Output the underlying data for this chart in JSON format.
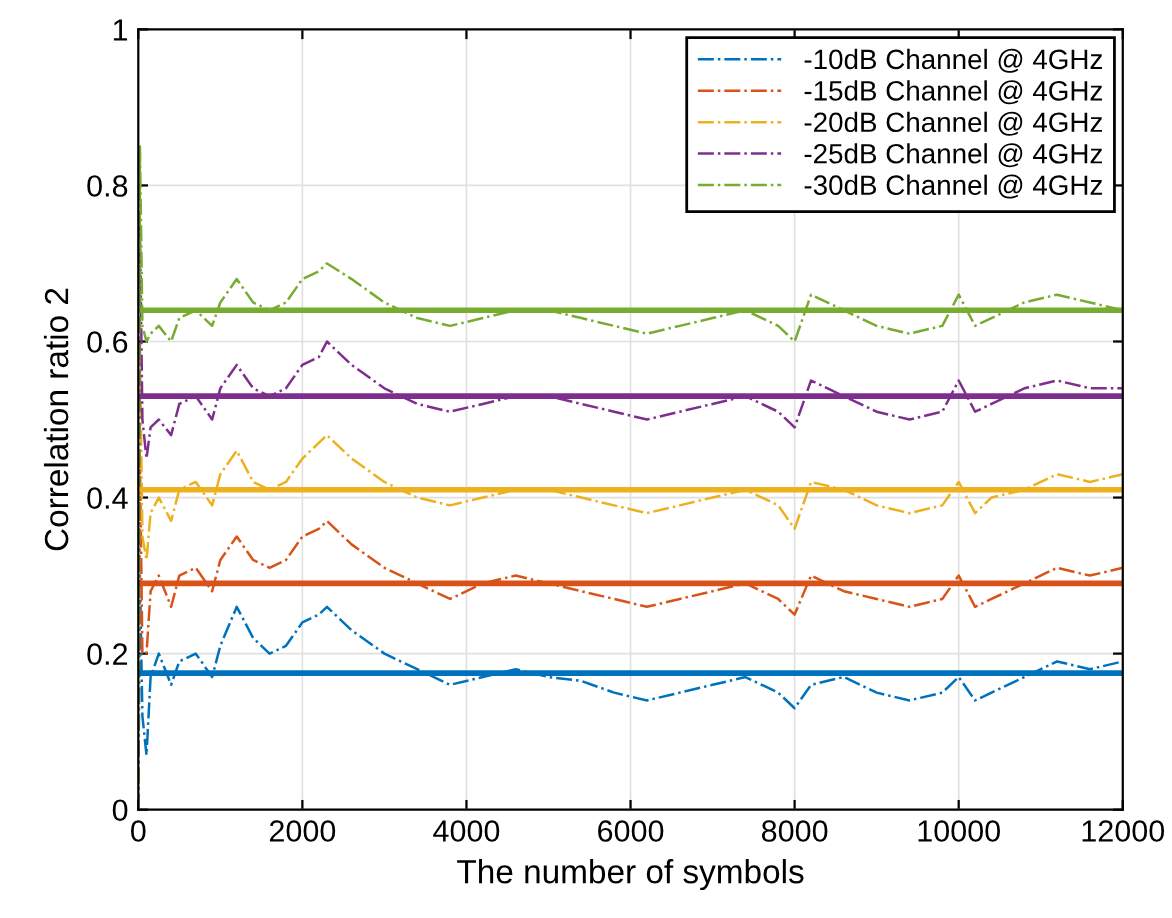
{
  "chart_data": {
    "type": "line",
    "xlabel": "The number of symbols",
    "ylabel": "Correlation ratio 2",
    "x": [
      0,
      20,
      50,
      100,
      150,
      250,
      400,
      500,
      700,
      900,
      1000,
      1200,
      1400,
      1600,
      1800,
      2000,
      2200,
      2300,
      2600,
      3000,
      3400,
      3800,
      4200,
      4600,
      5000,
      5400,
      5800,
      6200,
      6600,
      7000,
      7400,
      7800,
      8000,
      8200,
      8600,
      9000,
      9400,
      9800,
      10000,
      10200,
      10400,
      10800,
      11200,
      11600,
      12000
    ],
    "series": [
      {
        "name": "-10dB Channel @ 4GHz",
        "color": "#0072bd",
        "values": [
          0,
          0.3,
          0.12,
          0.07,
          0.17,
          0.2,
          0.16,
          0.19,
          0.2,
          0.17,
          0.21,
          0.26,
          0.22,
          0.2,
          0.21,
          0.24,
          0.25,
          0.26,
          0.23,
          0.2,
          0.18,
          0.16,
          0.17,
          0.18,
          0.17,
          0.165,
          0.15,
          0.14,
          0.15,
          0.16,
          0.17,
          0.15,
          0.13,
          0.16,
          0.17,
          0.15,
          0.14,
          0.15,
          0.17,
          0.14,
          0.15,
          0.17,
          0.19,
          0.18,
          0.19
        ]
      },
      {
        "name": "-15dB Channel @ 4GHz",
        "color": "#d95319",
        "values": [
          0,
          0.45,
          0.2,
          0.2,
          0.28,
          0.3,
          0.26,
          0.3,
          0.31,
          0.28,
          0.32,
          0.35,
          0.32,
          0.31,
          0.32,
          0.35,
          0.36,
          0.37,
          0.34,
          0.31,
          0.29,
          0.27,
          0.29,
          0.3,
          0.29,
          0.28,
          0.27,
          0.26,
          0.27,
          0.28,
          0.29,
          0.27,
          0.25,
          0.3,
          0.28,
          0.27,
          0.26,
          0.27,
          0.3,
          0.26,
          0.27,
          0.29,
          0.31,
          0.3,
          0.31
        ]
      },
      {
        "name": "-20dB Channel @ 4GHz",
        "color": "#edb120",
        "values": [
          0,
          0.6,
          0.35,
          0.32,
          0.38,
          0.4,
          0.37,
          0.41,
          0.42,
          0.39,
          0.43,
          0.46,
          0.42,
          0.41,
          0.42,
          0.45,
          0.47,
          0.48,
          0.45,
          0.42,
          0.4,
          0.39,
          0.4,
          0.41,
          0.41,
          0.4,
          0.39,
          0.38,
          0.39,
          0.4,
          0.41,
          0.39,
          0.36,
          0.42,
          0.41,
          0.39,
          0.38,
          0.39,
          0.42,
          0.38,
          0.4,
          0.41,
          0.43,
          0.42,
          0.43
        ]
      },
      {
        "name": "-25dB Channel @ 4GHz",
        "color": "#7e2f8e",
        "values": [
          0,
          0.75,
          0.5,
          0.45,
          0.49,
          0.5,
          0.48,
          0.52,
          0.53,
          0.5,
          0.54,
          0.57,
          0.54,
          0.53,
          0.54,
          0.57,
          0.58,
          0.6,
          0.57,
          0.54,
          0.52,
          0.51,
          0.52,
          0.53,
          0.53,
          0.52,
          0.51,
          0.5,
          0.51,
          0.52,
          0.53,
          0.51,
          0.49,
          0.55,
          0.53,
          0.51,
          0.5,
          0.51,
          0.55,
          0.51,
          0.52,
          0.54,
          0.55,
          0.54,
          0.54
        ]
      },
      {
        "name": "-30dB Channel @ 4GHz",
        "color": "#77ac30",
        "values": [
          0,
          0.85,
          0.62,
          0.6,
          0.61,
          0.62,
          0.6,
          0.63,
          0.64,
          0.62,
          0.65,
          0.68,
          0.65,
          0.64,
          0.65,
          0.68,
          0.69,
          0.7,
          0.68,
          0.65,
          0.63,
          0.62,
          0.63,
          0.64,
          0.64,
          0.63,
          0.62,
          0.61,
          0.62,
          0.63,
          0.64,
          0.62,
          0.6,
          0.66,
          0.64,
          0.62,
          0.61,
          0.62,
          0.66,
          0.62,
          0.63,
          0.65,
          0.66,
          0.65,
          0.64
        ]
      }
    ],
    "ref_lines": [
      {
        "axis": "y",
        "value": 0.175,
        "color": "#0072bd",
        "line_style": "solid"
      },
      {
        "axis": "y",
        "value": 0.29,
        "color": "#d95319",
        "line_style": "solid"
      },
      {
        "axis": "y",
        "value": 0.41,
        "color": "#edb120",
        "line_style": "solid"
      },
      {
        "axis": "y",
        "value": 0.53,
        "color": "#7e2f8e",
        "line_style": "solid"
      },
      {
        "axis": "y",
        "value": 0.64,
        "color": "#77ac30",
        "line_style": "solid"
      }
    ],
    "xlim": [
      0,
      12000
    ],
    "ylim": [
      0,
      1
    ],
    "xticks": [
      0,
      2000,
      4000,
      6000,
      8000,
      10000,
      12000
    ],
    "yticks": [
      0,
      0.2,
      0.4,
      0.6,
      0.8,
      1
    ],
    "grid": true,
    "legend": "top right",
    "line_style": "dashdot",
    "marker": "none"
  }
}
